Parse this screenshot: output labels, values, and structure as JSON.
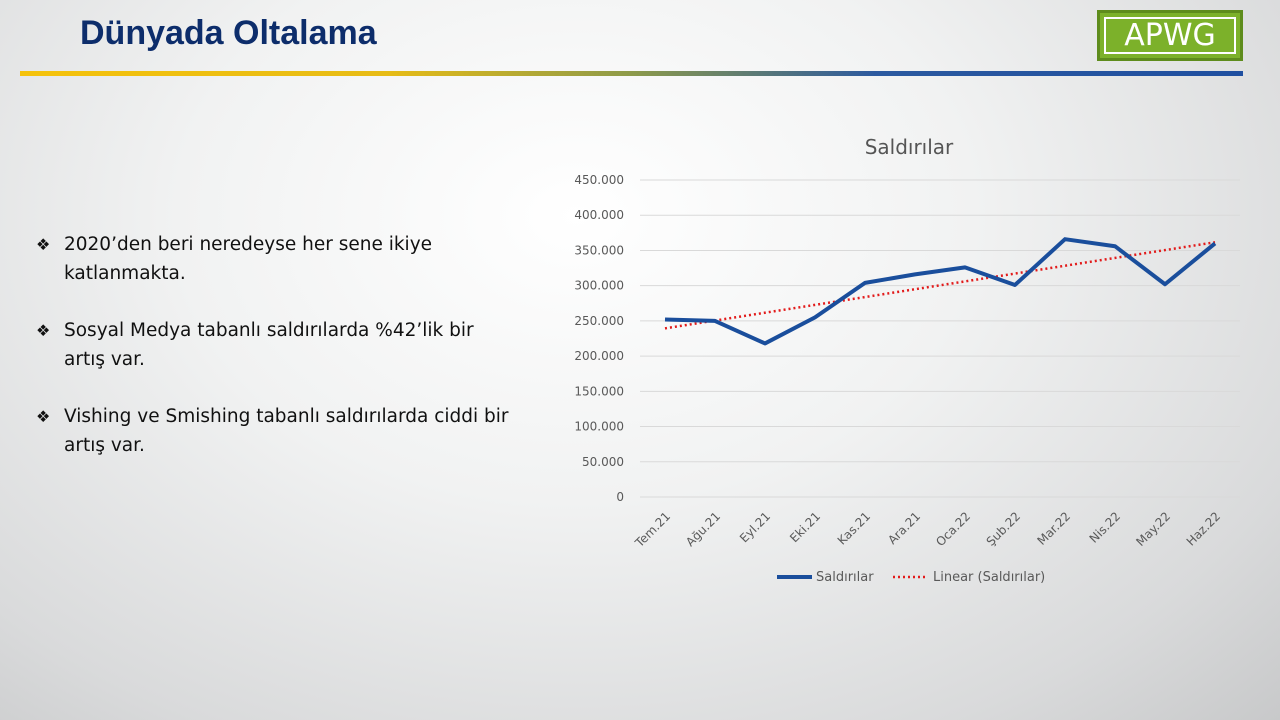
{
  "header": {
    "title": "Dünyada Oltalama",
    "logo_text": "APWG"
  },
  "bullets": [
    {
      "mark": "❖",
      "text": "2020’den beri neredeyse her sene ikiye katlanmakta."
    },
    {
      "mark": "❖",
      "text": "Sosyal Medya tabanlı saldırılarda %42’lik bir artış var."
    },
    {
      "mark": "❖",
      "text": "Vishing ve Smishing tabanlı saldırılarda ciddi bir artış var."
    }
  ],
  "colors": {
    "title": "#0d2d6b",
    "series": "#1a4e9c",
    "trend": "#e21b1b",
    "logo": "#7cb12a"
  },
  "chart_data": {
    "type": "line",
    "title": "Saldırılar",
    "categories": [
      "Tem.21",
      "Ağu.21",
      "Eyl.21",
      "Eki.21",
      "Kas.21",
      "Ara.21",
      "Oca.22",
      "Şub.22",
      "Mar.22",
      "Nis.22",
      "May.22",
      "Haz.22"
    ],
    "series": [
      {
        "name": "Saldırılar",
        "values": [
          252000,
          250000,
          218000,
          255000,
          304000,
          316000,
          326000,
          301000,
          366000,
          356000,
          302000,
          360000
        ]
      }
    ],
    "trendline": {
      "name": "Linear (Saldırılar)",
      "type": "linear"
    },
    "yticks": [
      "0",
      "50.000",
      "100.000",
      "150.000",
      "200.000",
      "250.000",
      "300.000",
      "350.000",
      "400.000",
      "450.000"
    ],
    "ylim": [
      0,
      450000
    ],
    "grid": true,
    "legend": "bottom"
  }
}
